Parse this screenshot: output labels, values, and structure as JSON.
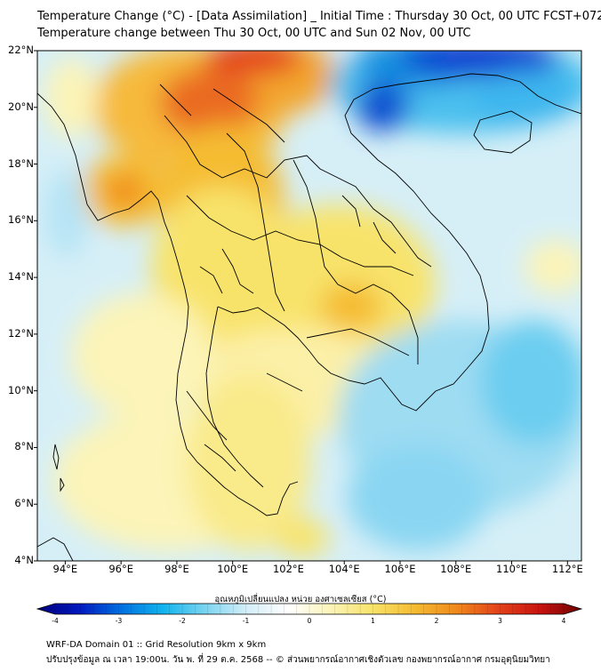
{
  "header": {
    "title_line1": "Temperature Change (°C) - [Data Assimilation] _ Initial Time : Thursday 30 Oct, 00 UTC FCST+072",
    "title_line2": "Temperature change between Thu 30 Oct, 00 UTC and Sun 02 Nov, 00 UTC"
  },
  "map": {
    "lat_labels": [
      "22°N",
      "20°N",
      "18°N",
      "16°N",
      "14°N",
      "12°N",
      "10°N",
      "8°N",
      "6°N",
      "4°N"
    ],
    "lon_labels": [
      "94°E",
      "96°E",
      "98°E",
      "100°E",
      "102°E",
      "104°E",
      "106°E",
      "108°E",
      "110°E",
      "112°E"
    ]
  },
  "colorbar": {
    "label": "อุณหภูมิเปลี่ยนแปลง หน่วย องศาเซลเซียส (°C)",
    "ticks": [
      "-4",
      "-3",
      "-2",
      "-1",
      "0",
      "1",
      "2",
      "3",
      "4"
    ],
    "min": -4,
    "max": 4,
    "colors": [
      "#00007a",
      "#0018c0",
      "#0070e0",
      "#10b4ee",
      "#7ad4f0",
      "#d4eef8",
      "#ffffff",
      "#fcf4b8",
      "#f8e36a",
      "#f5bc32",
      "#f08a1c",
      "#e4421a",
      "#c81410",
      "#6e0000"
    ]
  },
  "footer": {
    "line1": "WRF-DA Domain 01 :: Grid Resolution 9km x 9km",
    "line2": "ปรับปรุงข้อมูล ณ เวลา 19:00น. วัน พ. ที่ 29 ต.ค. 2568 -- © ส่วนพยากรณ์อากาศเชิงตัวเลข กองพยากรณ์อากาศ กรมอุตุนิยมวิทยา"
  }
}
